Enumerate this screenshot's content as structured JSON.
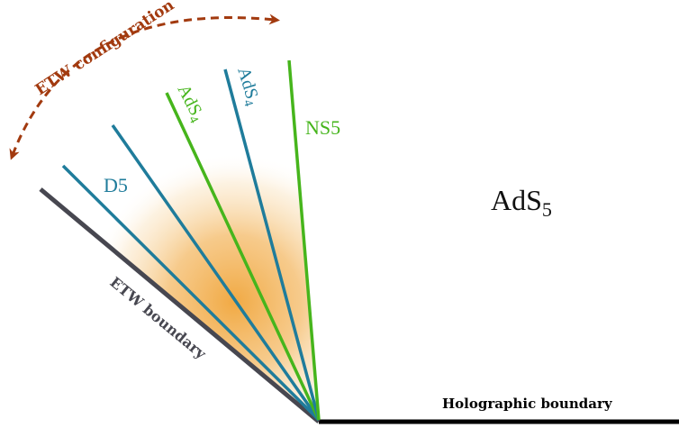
{
  "labels": {
    "etw_configuration": "ETW configuration",
    "ads5_main": "AdS",
    "ads5_sub": "5",
    "d5": "D5",
    "ads4_green_main": "AdS",
    "ads4_green_sub": "4",
    "ads4_blue_main": "AdS",
    "ads4_blue_sub": "4",
    "ns5": "NS5",
    "etw_boundary": "ETW boundary",
    "holographic_boundary": "Holographic boundary"
  },
  "colors": {
    "etw_config_arrow": "#a23a0f",
    "etw_boundary_line": "#474750",
    "holographic_boundary_line": "#000000",
    "blue_brane": "#1f7c9b",
    "green_brane": "#46b51c",
    "wedge_fill": "#f0a53a"
  }
}
